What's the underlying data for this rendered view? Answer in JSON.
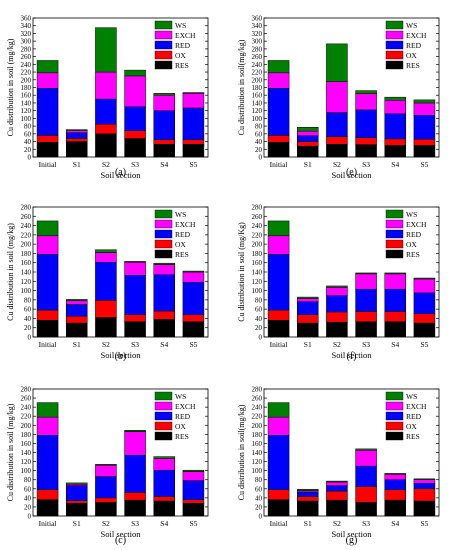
{
  "figure": {
    "colors": {
      "RES": "#000000",
      "OX": "#ff0000",
      "RED": "#0000ff",
      "EXCH": "#ff00ff",
      "WS": "#008000"
    }
  },
  "chart_data": [
    {
      "type": "bar",
      "stacked": true,
      "panel_label": "(a)",
      "categories": [
        "Initial",
        "S1",
        "S2",
        "S3",
        "S4",
        "S5"
      ],
      "xlabel": "Soil section",
      "ylabel": "Cu distribution in soil (mg/kg)",
      "ylim": [
        0,
        360
      ],
      "yticks": [
        0,
        20,
        40,
        60,
        80,
        100,
        120,
        140,
        160,
        180,
        200,
        220,
        240,
        260,
        280,
        300,
        320,
        340,
        360
      ],
      "legend": [
        "WS",
        "EXCH",
        "RED",
        "OX",
        "RES"
      ],
      "legend_position": "top-right",
      "grid": false,
      "series": [
        {
          "name": "RES",
          "values": [
            38,
            40,
            60,
            48,
            33,
            33
          ]
        },
        {
          "name": "OX",
          "values": [
            18,
            8,
            25,
            20,
            12,
            12
          ]
        },
        {
          "name": "RED",
          "values": [
            122,
            15,
            65,
            62,
            75,
            82
          ]
        },
        {
          "name": "EXCH",
          "values": [
            40,
            5,
            70,
            80,
            40,
            38
          ]
        },
        {
          "name": "WS",
          "values": [
            32,
            3,
            115,
            15,
            5,
            2
          ]
        }
      ]
    },
    {
      "type": "bar",
      "stacked": true,
      "panel_label": "(b)",
      "categories": [
        "Initial",
        "S1",
        "S2",
        "S3",
        "S4",
        "S5"
      ],
      "xlabel": "Soil section",
      "ylabel": "Cu distribution in soil (mg/kg)",
      "ylim": [
        0,
        280
      ],
      "yticks": [
        0,
        20,
        40,
        60,
        80,
        100,
        120,
        140,
        160,
        180,
        200,
        220,
        240,
        260,
        280
      ],
      "legend": [
        "WS",
        "EXCH",
        "RED",
        "OX",
        "RES"
      ],
      "legend_position": "top-right",
      "grid": false,
      "series": [
        {
          "name": "RES",
          "values": [
            36,
            30,
            42,
            33,
            38,
            33
          ]
        },
        {
          "name": "OX",
          "values": [
            22,
            15,
            37,
            15,
            18,
            15
          ]
        },
        {
          "name": "RED",
          "values": [
            120,
            25,
            82,
            85,
            78,
            70
          ]
        },
        {
          "name": "EXCH",
          "values": [
            40,
            8,
            21,
            28,
            22,
            22
          ]
        },
        {
          "name": "WS",
          "values": [
            32,
            3,
            6,
            2,
            3,
            2
          ]
        }
      ]
    },
    {
      "type": "bar",
      "stacked": true,
      "panel_label": "(c)",
      "categories": [
        "Initial",
        "S1",
        "S2",
        "S3",
        "S4",
        "S5"
      ],
      "xlabel": "Soil section",
      "ylabel": "Cu distribution in soil (mg/kg)",
      "ylim": [
        0,
        280
      ],
      "yticks": [
        0,
        20,
        40,
        60,
        80,
        100,
        120,
        140,
        160,
        180,
        200,
        220,
        240,
        260,
        280
      ],
      "legend": [
        "WS",
        "EXCH",
        "RED",
        "OX",
        "RES"
      ],
      "legend_position": "top-right",
      "grid": false,
      "series": [
        {
          "name": "RES",
          "values": [
            36,
            28,
            30,
            35,
            33,
            28
          ]
        },
        {
          "name": "OX",
          "values": [
            22,
            6,
            10,
            17,
            10,
            8
          ]
        },
        {
          "name": "RED",
          "values": [
            120,
            33,
            47,
            82,
            58,
            42
          ]
        },
        {
          "name": "EXCH",
          "values": [
            40,
            3,
            25,
            52,
            26,
            20
          ]
        },
        {
          "name": "WS",
          "values": [
            32,
            3,
            2,
            3,
            4,
            3
          ]
        }
      ]
    },
    {
      "type": "bar",
      "stacked": true,
      "panel_label": "(e)",
      "categories": [
        "Initial",
        "S1",
        "S2",
        "S3",
        "S4",
        "S5"
      ],
      "xlabel": "Soil section",
      "ylabel": "Cu distribution in soil(mg/kg)",
      "ylim": [
        0,
        360
      ],
      "yticks": [
        0,
        20,
        40,
        60,
        80,
        100,
        120,
        140,
        160,
        180,
        200,
        220,
        240,
        260,
        280,
        300,
        320,
        340,
        360
      ],
      "legend": [
        "WS",
        "EXCH",
        "RED",
        "OX",
        "RES"
      ],
      "legend_position": "top-right",
      "grid": false,
      "series": [
        {
          "name": "RES",
          "values": [
            38,
            28,
            33,
            32,
            30,
            30
          ]
        },
        {
          "name": "OX",
          "values": [
            18,
            12,
            20,
            18,
            17,
            16
          ]
        },
        {
          "name": "RED",
          "values": [
            122,
            15,
            62,
            72,
            65,
            62
          ]
        },
        {
          "name": "EXCH",
          "values": [
            40,
            12,
            80,
            42,
            35,
            32
          ]
        },
        {
          "name": "WS",
          "values": [
            32,
            10,
            98,
            8,
            8,
            8
          ]
        }
      ]
    },
    {
      "type": "bar",
      "stacked": true,
      "panel_label": "(f)",
      "categories": [
        "Initial",
        "S1",
        "S2",
        "S3",
        "S4",
        "S5"
      ],
      "xlabel": "Soil section",
      "ylabel": "Cu distribution in soil (mg/Kg)",
      "ylim": [
        0,
        280
      ],
      "yticks": [
        0,
        20,
        40,
        60,
        80,
        100,
        120,
        140,
        160,
        180,
        200,
        220,
        240,
        260,
        280
      ],
      "legend": [
        "WS",
        "EXCH",
        "RED",
        "OX",
        "RES"
      ],
      "legend_position": "top-right",
      "grid": false,
      "series": [
        {
          "name": "RES",
          "values": [
            36,
            30,
            32,
            33,
            33,
            30
          ]
        },
        {
          "name": "OX",
          "values": [
            22,
            18,
            22,
            22,
            22,
            20
          ]
        },
        {
          "name": "RED",
          "values": [
            120,
            28,
            35,
            48,
            48,
            45
          ]
        },
        {
          "name": "EXCH",
          "values": [
            40,
            7,
            18,
            33,
            33,
            30
          ]
        },
        {
          "name": "WS",
          "values": [
            32,
            3,
            3,
            2,
            2,
            2
          ]
        }
      ]
    },
    {
      "type": "bar",
      "stacked": true,
      "panel_label": "(g)",
      "categories": [
        "Initial",
        "S1",
        "S2",
        "S3",
        "S4",
        "S5"
      ],
      "xlabel": "Soil section",
      "ylabel": "Cu distribution in soil(mg/kg)",
      "ylim": [
        0,
        280
      ],
      "yticks": [
        0,
        20,
        40,
        60,
        80,
        100,
        120,
        140,
        160,
        180,
        200,
        220,
        240,
        260,
        280
      ],
      "legend": [
        "WS",
        "EXCH",
        "RED",
        "OX",
        "RES"
      ],
      "legend_position": "top-right",
      "grid": false,
      "series": [
        {
          "name": "RES",
          "values": [
            36,
            33,
            35,
            30,
            35,
            33
          ]
        },
        {
          "name": "OX",
          "values": [
            22,
            10,
            20,
            35,
            23,
            27
          ]
        },
        {
          "name": "RED",
          "values": [
            120,
            10,
            12,
            45,
            22,
            12
          ]
        },
        {
          "name": "EXCH",
          "values": [
            40,
            3,
            8,
            35,
            12,
            8
          ]
        },
        {
          "name": "WS",
          "values": [
            32,
            3,
            2,
            3,
            2,
            2
          ]
        }
      ]
    }
  ]
}
